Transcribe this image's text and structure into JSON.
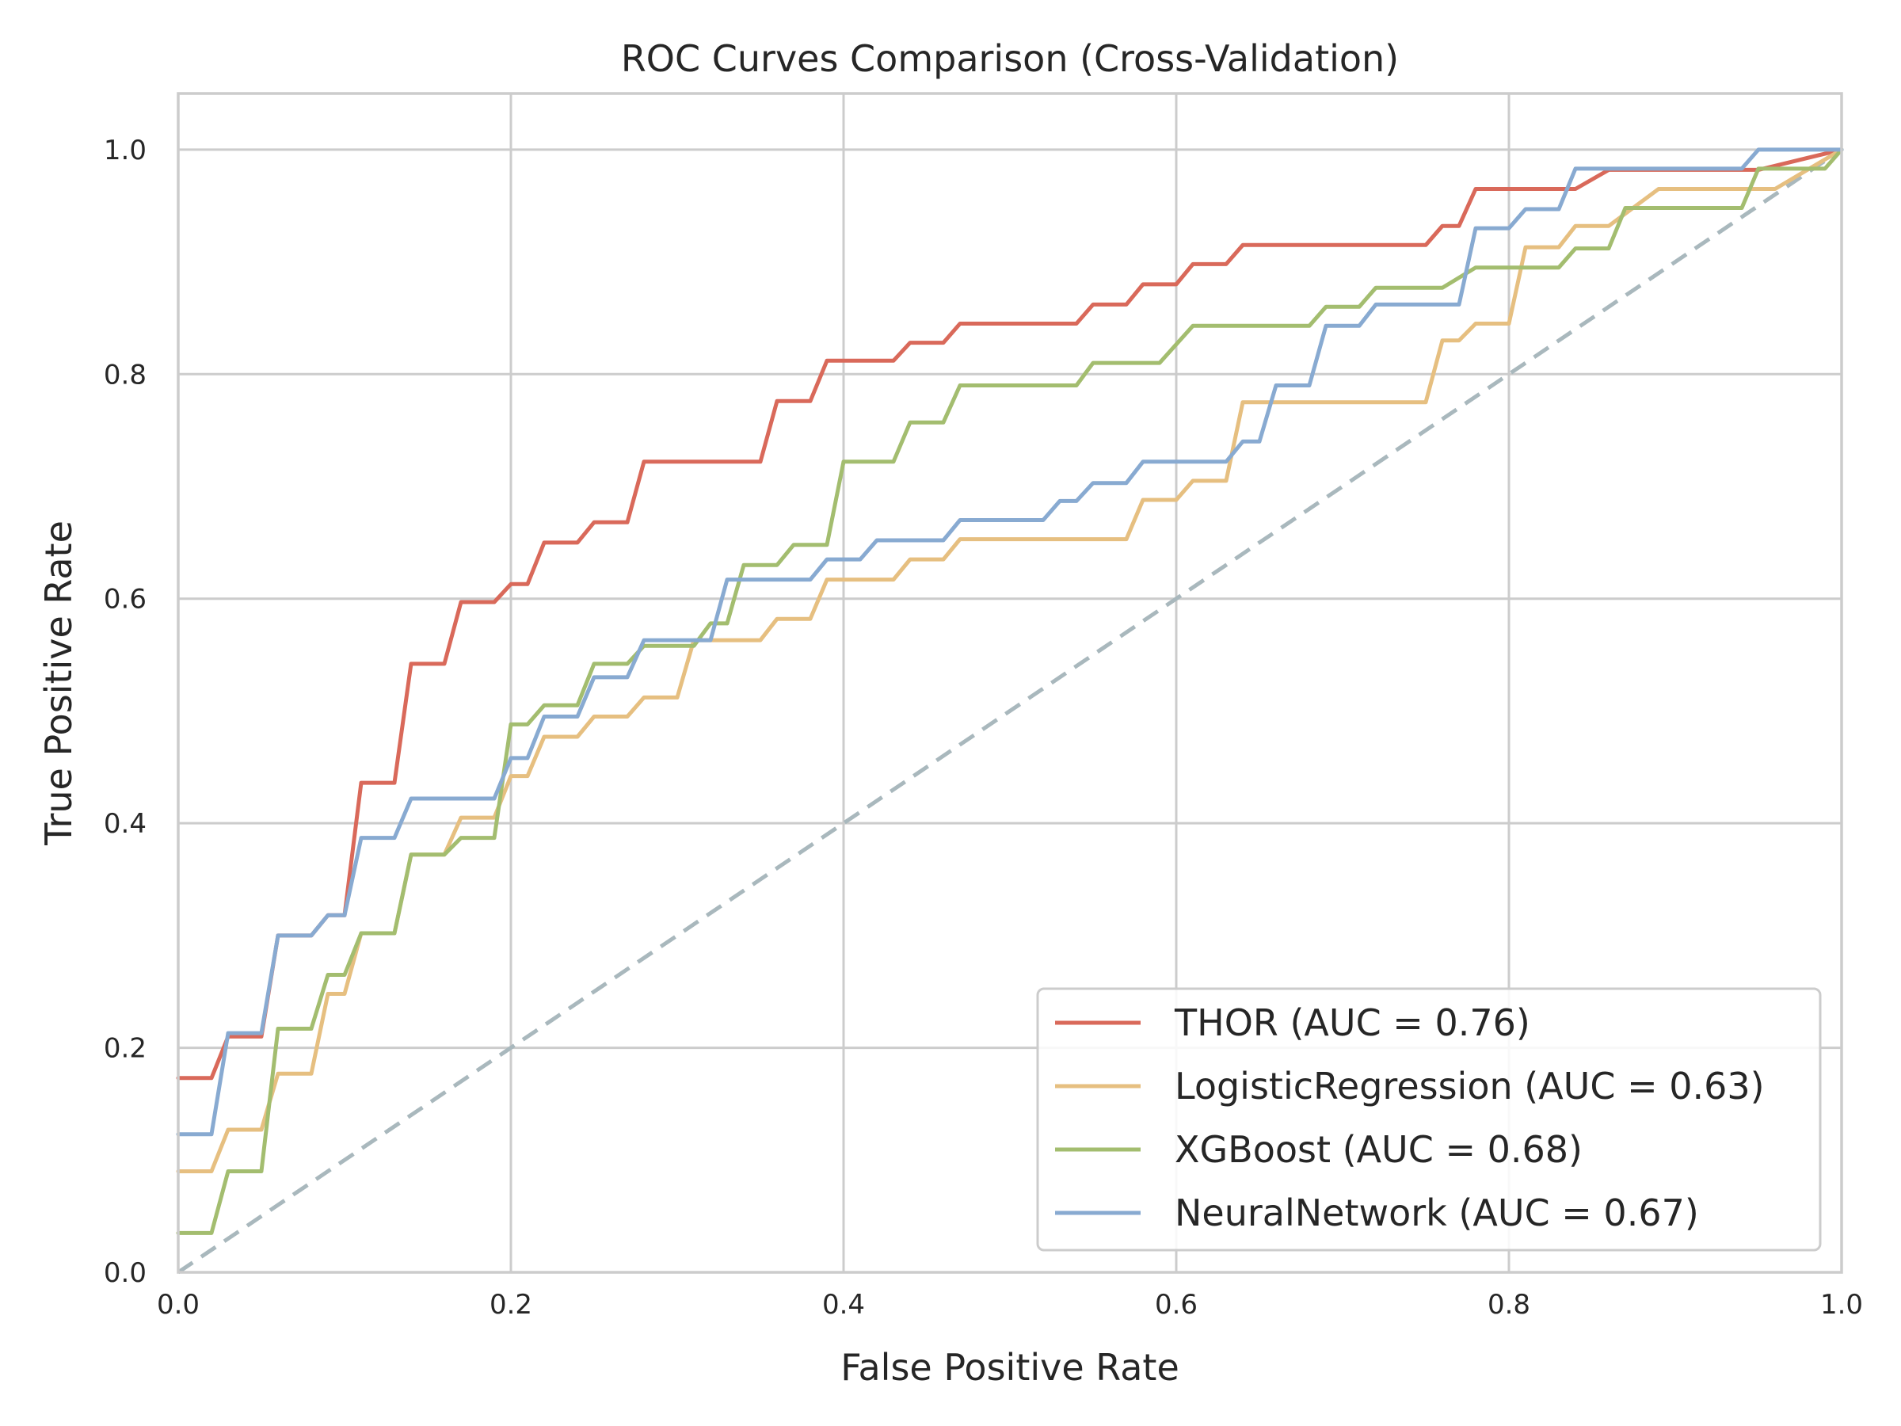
{
  "chart_data": {
    "type": "line",
    "title": "ROC Curves Comparison (Cross-Validation)",
    "xlabel": "False Positive Rate",
    "ylabel": "True Positive Rate",
    "xlim": [
      0.0,
      1.0
    ],
    "ylim": [
      0.0,
      1.05
    ],
    "xticks": [
      0.0,
      0.2,
      0.4,
      0.6,
      0.8,
      1.0
    ],
    "yticks": [
      0.0,
      0.2,
      0.4,
      0.6,
      0.8,
      1.0
    ],
    "xtick_labels": [
      "0.0",
      "0.2",
      "0.4",
      "0.6",
      "0.8",
      "1.0"
    ],
    "ytick_labels": [
      "0.0",
      "0.2",
      "0.4",
      "0.6",
      "0.8",
      "1.0"
    ],
    "grid": true,
    "legend_position": "lower-right",
    "chance_line": {
      "x": [
        0,
        1
      ],
      "y": [
        0,
        1
      ],
      "color": "#a9b8bd",
      "style": "dashed"
    },
    "series": [
      {
        "name": "THOR (AUC = 0.76)",
        "color": "#d9695a",
        "x": [
          0.0,
          0.02,
          0.03,
          0.05,
          0.06,
          0.08,
          0.09,
          0.1,
          0.11,
          0.13,
          0.14,
          0.16,
          0.17,
          0.19,
          0.2,
          0.21,
          0.22,
          0.24,
          0.25,
          0.27,
          0.28,
          0.35,
          0.36,
          0.38,
          0.39,
          0.43,
          0.44,
          0.46,
          0.47,
          0.54,
          0.55,
          0.57,
          0.58,
          0.6,
          0.61,
          0.63,
          0.64,
          0.75,
          0.76,
          0.77,
          0.78,
          0.84,
          0.86,
          0.95,
          1.0
        ],
        "y": [
          0.173,
          0.173,
          0.21,
          0.21,
          0.3,
          0.3,
          0.318,
          0.318,
          0.436,
          0.436,
          0.542,
          0.542,
          0.597,
          0.597,
          0.613,
          0.613,
          0.65,
          0.65,
          0.668,
          0.668,
          0.722,
          0.722,
          0.776,
          0.776,
          0.812,
          0.812,
          0.828,
          0.828,
          0.845,
          0.845,
          0.862,
          0.862,
          0.88,
          0.88,
          0.898,
          0.898,
          0.915,
          0.915,
          0.932,
          0.932,
          0.965,
          0.965,
          0.982,
          0.982,
          1.0
        ]
      },
      {
        "name": "LogisticRegression (AUC = 0.63)",
        "color": "#e6bf80",
        "x": [
          0.0,
          0.02,
          0.03,
          0.05,
          0.06,
          0.08,
          0.09,
          0.1,
          0.11,
          0.13,
          0.14,
          0.16,
          0.17,
          0.19,
          0.2,
          0.21,
          0.22,
          0.24,
          0.25,
          0.27,
          0.28,
          0.3,
          0.31,
          0.35,
          0.36,
          0.38,
          0.39,
          0.43,
          0.44,
          0.46,
          0.47,
          0.57,
          0.58,
          0.6,
          0.61,
          0.63,
          0.64,
          0.75,
          0.76,
          0.77,
          0.78,
          0.8,
          0.81,
          0.83,
          0.84,
          0.86,
          0.89,
          0.96,
          1.0
        ],
        "y": [
          0.09,
          0.09,
          0.127,
          0.127,
          0.177,
          0.177,
          0.248,
          0.248,
          0.302,
          0.302,
          0.372,
          0.372,
          0.405,
          0.405,
          0.442,
          0.442,
          0.477,
          0.477,
          0.495,
          0.495,
          0.512,
          0.512,
          0.563,
          0.563,
          0.582,
          0.582,
          0.617,
          0.617,
          0.635,
          0.635,
          0.653,
          0.653,
          0.688,
          0.688,
          0.705,
          0.705,
          0.775,
          0.775,
          0.83,
          0.83,
          0.845,
          0.845,
          0.913,
          0.913,
          0.932,
          0.932,
          0.965,
          0.965,
          1.0
        ]
      },
      {
        "name": "XGBoost (AUC = 0.68)",
        "color": "#a3bd6f",
        "x": [
          0.0,
          0.02,
          0.03,
          0.05,
          0.06,
          0.08,
          0.09,
          0.1,
          0.11,
          0.13,
          0.14,
          0.16,
          0.17,
          0.19,
          0.2,
          0.21,
          0.22,
          0.24,
          0.25,
          0.27,
          0.28,
          0.31,
          0.32,
          0.33,
          0.34,
          0.36,
          0.37,
          0.39,
          0.4,
          0.43,
          0.44,
          0.46,
          0.47,
          0.54,
          0.55,
          0.59,
          0.61,
          0.68,
          0.69,
          0.71,
          0.72,
          0.76,
          0.78,
          0.83,
          0.84,
          0.86,
          0.87,
          0.94,
          0.95,
          0.99,
          1.0
        ],
        "y": [
          0.035,
          0.035,
          0.09,
          0.09,
          0.217,
          0.217,
          0.265,
          0.265,
          0.302,
          0.302,
          0.372,
          0.372,
          0.387,
          0.387,
          0.488,
          0.488,
          0.505,
          0.505,
          0.542,
          0.542,
          0.558,
          0.558,
          0.578,
          0.578,
          0.63,
          0.63,
          0.648,
          0.648,
          0.722,
          0.722,
          0.757,
          0.757,
          0.79,
          0.79,
          0.81,
          0.81,
          0.843,
          0.843,
          0.86,
          0.86,
          0.877,
          0.877,
          0.895,
          0.895,
          0.912,
          0.912,
          0.948,
          0.948,
          0.983,
          0.983,
          1.0
        ]
      },
      {
        "name": "NeuralNetwork (AUC = 0.67)",
        "color": "#88aad1",
        "x": [
          0.0,
          0.02,
          0.03,
          0.05,
          0.06,
          0.08,
          0.09,
          0.1,
          0.11,
          0.13,
          0.14,
          0.19,
          0.2,
          0.21,
          0.22,
          0.24,
          0.25,
          0.27,
          0.28,
          0.32,
          0.33,
          0.38,
          0.39,
          0.41,
          0.42,
          0.46,
          0.47,
          0.52,
          0.53,
          0.54,
          0.55,
          0.57,
          0.58,
          0.63,
          0.64,
          0.65,
          0.66,
          0.68,
          0.69,
          0.71,
          0.72,
          0.77,
          0.78,
          0.8,
          0.81,
          0.83,
          0.84,
          0.94,
          0.95,
          1.0
        ],
        "y": [
          0.123,
          0.123,
          0.213,
          0.213,
          0.3,
          0.3,
          0.318,
          0.318,
          0.387,
          0.387,
          0.422,
          0.422,
          0.458,
          0.458,
          0.495,
          0.495,
          0.53,
          0.53,
          0.563,
          0.563,
          0.617,
          0.617,
          0.635,
          0.635,
          0.652,
          0.652,
          0.67,
          0.67,
          0.687,
          0.687,
          0.703,
          0.703,
          0.722,
          0.722,
          0.74,
          0.74,
          0.79,
          0.79,
          0.843,
          0.843,
          0.862,
          0.862,
          0.93,
          0.93,
          0.947,
          0.947,
          0.983,
          0.983,
          1.0,
          1.0
        ]
      }
    ]
  }
}
